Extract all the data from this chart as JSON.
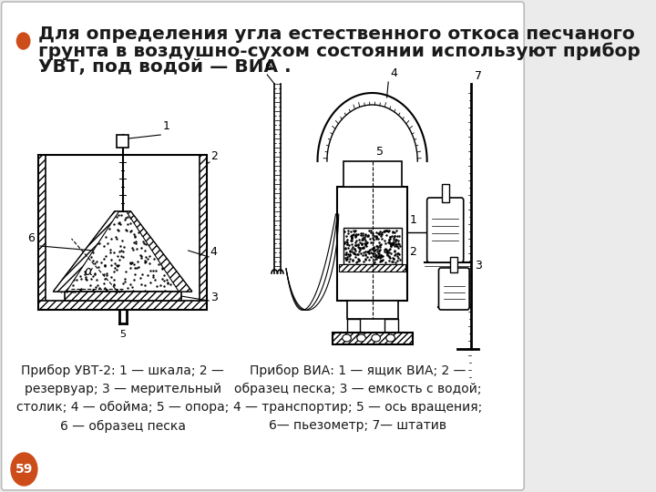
{
  "bg_color": "#ebebeb",
  "slide_bg": "#ffffff",
  "border_color": "#bbbbbb",
  "bullet_color": "#cc4c1a",
  "bullet_text_line1": "Для определения угла естественного откоса песчаного",
  "bullet_text_line2": "грунта в воздушно-сухом состоянии используют прибор",
  "bullet_text_line3": "УВТ, под водой — ВИА .",
  "caption_left": "Прибор УВТ-2: 1 — шкала; 2 —\nрезервуар; 3 — мерительный\nстолик; 4 — обойма; 5 — опора;\n6 — образец песка",
  "caption_right": "Прибор ВИА: 1 — ящик ВИА; 2 —\nобразец песка; 3 — емкость с водой;\n4 — транспортир; 5 — ось вращения;\n6— пьезометр; 7— штатив",
  "page_number": "59",
  "page_circle_color": "#cc4c1a",
  "text_color": "#1a1a1a",
  "title_fontsize": 14.5,
  "caption_fontsize": 10
}
